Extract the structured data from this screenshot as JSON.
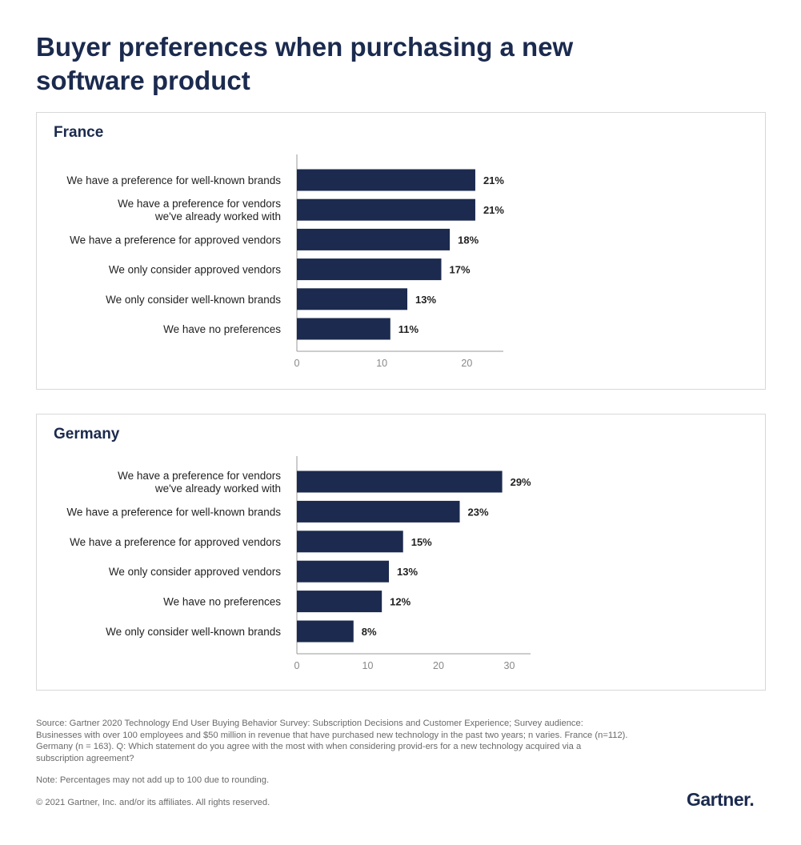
{
  "title": "Buyer preferences when purchasing a new software product",
  "chart_data": [
    {
      "type": "bar",
      "orientation": "horizontal",
      "title": "France",
      "categories": [
        "We have a preference for well-known brands",
        "We have a preference for vendors|we've already worked with",
        "We have a preference for approved vendors",
        "We only consider approved vendors",
        "We only consider well-known brands",
        "We have no preferences"
      ],
      "values": [
        21,
        21,
        18,
        17,
        13,
        11
      ],
      "data_labels": [
        "21%",
        "21%",
        "18%",
        "17%",
        "13%",
        "11%"
      ],
      "xticks": [
        0,
        10,
        20
      ],
      "xlim": [
        0,
        24.3
      ],
      "grid": false,
      "color": "#1b2a4e"
    },
    {
      "type": "bar",
      "orientation": "horizontal",
      "title": "Germany",
      "categories": [
        "We have a preference for vendors|we've already worked with",
        "We have a preference for well-known brands",
        "We have a preference for approved vendors",
        "We only consider approved vendors",
        "We have no preferences",
        "We only consider well-known brands"
      ],
      "values": [
        29,
        23,
        15,
        13,
        12,
        8
      ],
      "data_labels": [
        "29%",
        "23%",
        "15%",
        "13%",
        "12%",
        "8%"
      ],
      "xticks": [
        0,
        10,
        20,
        30
      ],
      "xlim": [
        0,
        33
      ],
      "grid": false,
      "color": "#1b2a4e"
    }
  ],
  "footer": {
    "source": "Source: Gartner 2020 Technology End User Buying Behavior Survey: Subscription Decisions and Customer Experience; Survey audience: Businesses with over 100 employees and $50 million in revenue that have purchased new technology in the past two years; n varies. France (n=112). Germany (n = 163). Q: Which statement do you agree with the most with when considering provid-ers for a new technology acquired via a subscription agreement?",
    "note": "Note: Percentages may not add up to 100 due to rounding.",
    "copyright": "© 2021 Gartner, Inc. and/or its affiliates. All rights reserved."
  },
  "logo": "Gartner."
}
